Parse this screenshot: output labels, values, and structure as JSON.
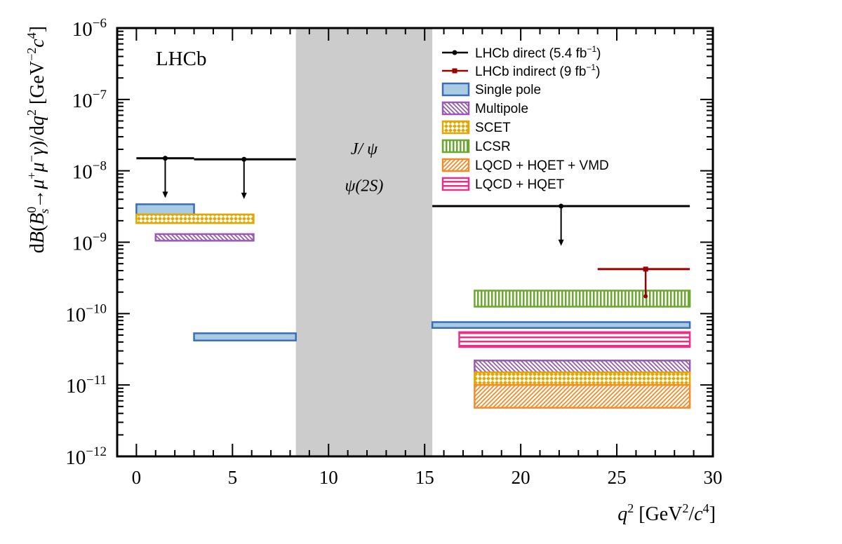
{
  "chart_data": {
    "type": "bar",
    "title": "",
    "experiment_label": "LHCb",
    "xlabel": {
      "base": "q",
      "sup": "2",
      "unit_open": " [GeV",
      "unit_sup": "2",
      "unit_slash": "/",
      "unit_c": "c",
      "unit_c_sup": "4",
      "unit_close": "]"
    },
    "ylabel": {
      "p1": "d",
      "p2": "B",
      "p3": "(",
      "p4": "B",
      "p4_sup": "0",
      "p4_sub": "s",
      "p5": "→",
      "p6": "μ",
      "p6_sup": "+",
      "p7": "μ",
      "p7_sup": "−",
      "p8": "γ",
      "p9": ")/d",
      "p10": "q",
      "p10_sup": "2",
      "p11": " [GeV",
      "p11_sup": "−2",
      "p12": "c",
      "p12_sup": "4",
      "p13": "]"
    },
    "xlim": [
      -1,
      30
    ],
    "ylim": [
      1e-12,
      1e-06
    ],
    "yscale": "log",
    "xticks": [
      0,
      5,
      10,
      15,
      20,
      25,
      30
    ],
    "yticks": [
      {
        "value": 1e-12,
        "base": "10",
        "exp": "−12"
      },
      {
        "value": 1e-11,
        "base": "10",
        "exp": "−11"
      },
      {
        "value": 1e-10,
        "base": "10",
        "exp": "−10"
      },
      {
        "value": 1e-09,
        "base": "10",
        "exp": "−9"
      },
      {
        "value": 1e-08,
        "base": "10",
        "exp": "−8"
      },
      {
        "value": 1e-07,
        "base": "10",
        "exp": "−7"
      },
      {
        "value": 1e-06,
        "base": "10",
        "exp": "−6"
      }
    ],
    "vetoed_region": {
      "x": [
        8.3,
        15.4
      ],
      "labels": [
        "J/ ψ",
        "ψ(2S)"
      ],
      "color": "#cccccc"
    },
    "series": [
      {
        "name": "LHCb direct (5.4 fb",
        "name_sup": "−1",
        "name_end": ")",
        "kind": "upper_limit",
        "color": "#000000",
        "points": [
          {
            "x0": 0,
            "x1": 3,
            "x": 1.5,
            "y": 1.5e-08
          },
          {
            "x0": 3,
            "x1": 8.3,
            "x": 5.6,
            "y": 1.45e-08
          },
          {
            "x0": 15.4,
            "x1": 28.8,
            "x": 22.1,
            "y": 3.2e-09
          }
        ]
      },
      {
        "name": "LHCb indirect (9 fb",
        "name_sup": "−1",
        "name_end": ")",
        "kind": "upper_limit",
        "color": "#990000",
        "points": [
          {
            "x0": 24.0,
            "x1": 28.8,
            "x": 26.5,
            "y": 4.2e-10
          }
        ]
      },
      {
        "name": "Single pole",
        "kind": "band",
        "color": "#3a6fb8",
        "fill": "#a9cce3",
        "pattern": "solid",
        "bands": [
          {
            "x0": 0,
            "x1": 3,
            "ylo": 2.2e-09,
            "yhi": 3.4e-09
          },
          {
            "x0": 3,
            "x1": 8.3,
            "ylo": 4.2e-11,
            "yhi": 5.3e-11
          },
          {
            "x0": 15.4,
            "x1": 28.8,
            "ylo": 6.3e-11,
            "yhi": 7.6e-11
          }
        ]
      },
      {
        "name": "Multipole",
        "kind": "band",
        "color": "#9b59b6",
        "pattern": "diagonal-rev",
        "bands": [
          {
            "x0": 1.0,
            "x1": 6.1,
            "ylo": 1.05e-09,
            "yhi": 1.3e-09
          },
          {
            "x0": 17.6,
            "x1": 28.8,
            "ylo": 1.5e-11,
            "yhi": 2.2e-11
          }
        ]
      },
      {
        "name": "SCET",
        "kind": "band",
        "color": "#e0a800",
        "pattern": "crosshatch",
        "bands": [
          {
            "x0": 0,
            "x1": 6.1,
            "ylo": 1.85e-09,
            "yhi": 2.45e-09
          },
          {
            "x0": 17.6,
            "x1": 28.8,
            "ylo": 9.8e-12,
            "yhi": 1.5e-11
          }
        ]
      },
      {
        "name": "LCSR",
        "kind": "band",
        "color": "#6aa830",
        "pattern": "vertical",
        "bands": [
          {
            "x0": 17.6,
            "x1": 28.8,
            "ylo": 1.25e-10,
            "yhi": 2.1e-10
          }
        ]
      },
      {
        "name": "LQCD + HQET + VMD",
        "kind": "band",
        "color": "#f28c28",
        "pattern": "diagonal",
        "bands": [
          {
            "x0": 17.6,
            "x1": 28.8,
            "ylo": 4.8e-12,
            "yhi": 1e-11
          }
        ]
      },
      {
        "name": "LQCD + HQET",
        "kind": "band",
        "color": "#e8308a",
        "pattern": "horizontal",
        "bands": [
          {
            "x0": 16.8,
            "x1": 28.8,
            "ylo": 3.4e-11,
            "yhi": 5.5e-11
          }
        ]
      }
    ],
    "legend_position": "top-right"
  }
}
